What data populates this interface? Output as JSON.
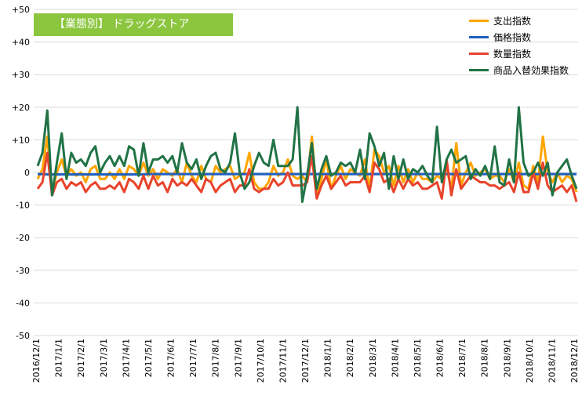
{
  "chart_data": {
    "type": "line",
    "title": "【業態別】 ドラッグストア",
    "xlabel": "",
    "ylabel": "",
    "ylim": [
      -50,
      50
    ],
    "y_ticks": [
      "+50",
      "+40",
      "+30",
      "+20",
      "+10",
      "0",
      "-10",
      "-20",
      "-30",
      "-40",
      "-50"
    ],
    "x_tick_labels": [
      "2016/12/1",
      "2017/1/1",
      "2017/2/1",
      "2017/3/1",
      "2017/4/1",
      "2017/5/1",
      "2017/6/1",
      "2017/7/1",
      "2017/8/1",
      "2017/9/1",
      "2017/10/1",
      "2017/11/1",
      "2017/12/1",
      "2018/1/1",
      "2018/2/1",
      "2018/3/1",
      "2018/4/1",
      "2018/5/1",
      "2018/6/1",
      "2018/7/1",
      "2018/8/1",
      "2018/9/1",
      "2018/10/1",
      "2018/11/1",
      "2018/12/1"
    ],
    "legend_position": "top-right",
    "grid": "horizontal",
    "series": [
      {
        "name": "支出指数",
        "color": "#ffa500",
        "values": [
          -2,
          1,
          11,
          -6,
          0,
          4,
          -1,
          1,
          -1,
          0,
          -3,
          1,
          2,
          -2,
          -2,
          0,
          -2,
          1,
          -2,
          2,
          1,
          -1,
          3,
          -1,
          1,
          -2,
          1,
          0,
          -1,
          1,
          -3,
          3,
          -1,
          -3,
          2,
          -2,
          -3,
          2,
          0,
          1,
          2,
          -2,
          -1,
          0,
          6,
          -3,
          -5,
          -5,
          -3,
          2,
          -1,
          0,
          4,
          -1,
          -2,
          -1,
          -3,
          11,
          -7,
          -2,
          4,
          -5,
          -1,
          2,
          -2,
          1,
          0,
          -1,
          4,
          -5,
          7,
          5,
          0,
          2,
          -4,
          2,
          -3,
          1,
          -3,
          0,
          -2,
          -2,
          -3,
          -1,
          -2,
          1,
          -5,
          9,
          -4,
          0,
          3,
          -1,
          0,
          1,
          -2,
          -1,
          -1,
          -3,
          1,
          -3,
          3,
          -4,
          -5,
          2,
          -3,
          11,
          0,
          -3,
          0,
          -3,
          -1,
          -2,
          -6
        ]
      },
      {
        "name": "価格指数",
        "color": "#1f5fc0",
        "values": [
          -0.5,
          -0.5,
          -0.6,
          -0.6,
          -0.6,
          -0.6,
          -0.6,
          -0.6,
          -0.6,
          -0.6,
          -0.6,
          -0.6,
          -0.6,
          -0.6,
          -0.6,
          -0.6,
          -0.6,
          -0.6,
          -0.6,
          -0.6,
          -0.6,
          -0.6,
          -0.6,
          -0.5,
          -0.5,
          -0.5,
          -0.5,
          -0.5,
          -0.5,
          -0.5,
          -0.5,
          -0.5,
          -0.5,
          -0.5,
          -0.5,
          -0.5,
          -0.5,
          -0.5,
          -0.5,
          -0.5,
          -0.5,
          -0.5,
          -0.5,
          -0.5,
          -0.5,
          -0.5,
          -0.5,
          -0.5,
          -0.5,
          -0.5,
          -0.5,
          -0.5,
          -0.5,
          -0.5,
          -0.5,
          -0.5,
          -0.5,
          -0.5,
          -0.5,
          -0.5,
          -0.5,
          -0.5,
          -0.5,
          -0.5,
          -0.5,
          -0.5,
          -0.5,
          -0.5,
          -0.5,
          -0.5,
          -0.5,
          -0.5,
          -0.5,
          -0.5,
          -0.5,
          -0.5,
          -0.5,
          -0.5,
          -0.5,
          -0.5,
          -0.5,
          -0.5,
          -0.5,
          -0.5,
          -0.5,
          -0.5,
          -0.5,
          -0.5,
          -0.5,
          -0.5,
          -0.5,
          -0.5,
          -0.5,
          -0.5,
          -0.5,
          -0.5,
          -0.5,
          -0.5,
          -0.5,
          -0.5,
          -0.5,
          -0.5,
          -0.5,
          -0.5,
          -0.5,
          -0.5,
          -0.5,
          -0.5,
          -0.5,
          -0.5,
          -0.5,
          -0.5,
          -0.5
        ]
      },
      {
        "name": "数量指数",
        "color": "#e8432b",
        "values": [
          -5,
          -3,
          6,
          -7,
          -3,
          -2,
          -5,
          -3,
          -4,
          -3,
          -6,
          -4,
          -3,
          -5,
          -5,
          -4,
          -5,
          -3,
          -6,
          -2,
          -3,
          -5,
          -1,
          -5,
          -1,
          -4,
          -3,
          -6,
          -2,
          -4,
          -3,
          -4,
          -2,
          -4,
          -6,
          -2,
          -3,
          -6,
          -4,
          -3,
          -2,
          -6,
          -4,
          -4,
          1,
          -5,
          -6,
          -5,
          -5,
          -2,
          -4,
          -3,
          0,
          -4,
          -4,
          -4,
          -3,
          5,
          -8,
          -4,
          -1,
          -5,
          -3,
          -1,
          -4,
          -3,
          -3,
          -3,
          -1,
          -6,
          3,
          1,
          -3,
          -2,
          -6,
          -2,
          -5,
          -2,
          -4,
          -3,
          -5,
          -5,
          -4,
          -3,
          -8,
          4,
          -7,
          1,
          -5,
          -3,
          -1,
          -2,
          -3,
          -3,
          -4,
          -4,
          -5,
          -4,
          -3,
          -6,
          0,
          -6,
          -6,
          0,
          -5,
          3,
          -4,
          -6,
          -5,
          -4,
          -6,
          -4,
          -9
        ]
      },
      {
        "name": "商品入替効果指数",
        "color": "#217346",
        "values": [
          2,
          6,
          19,
          -7,
          3,
          12,
          -2,
          6,
          3,
          4,
          2,
          6,
          8,
          0,
          3,
          5,
          2,
          5,
          2,
          8,
          7,
          -1,
          9,
          0,
          4,
          4,
          5,
          3,
          5,
          0,
          9,
          3,
          1,
          4,
          -2,
          2,
          5,
          6,
          1,
          0,
          3,
          12,
          0,
          -5,
          -3,
          2,
          6,
          3,
          2,
          10,
          2,
          2,
          2,
          4,
          20,
          -9,
          -1,
          9,
          -5,
          1,
          5,
          -1,
          0,
          3,
          2,
          3,
          0,
          7,
          -2,
          12,
          8,
          2,
          6,
          -5,
          5,
          -2,
          4,
          -2,
          1,
          0,
          2,
          -1,
          -3,
          14,
          -3,
          4,
          7,
          3,
          4,
          5,
          -2,
          1,
          -1,
          2,
          -2,
          8,
          -3,
          -4,
          4,
          -3,
          20,
          3,
          -1,
          0,
          3,
          -1,
          3,
          -7,
          0,
          2,
          4,
          -1,
          -5
        ]
      }
    ]
  }
}
